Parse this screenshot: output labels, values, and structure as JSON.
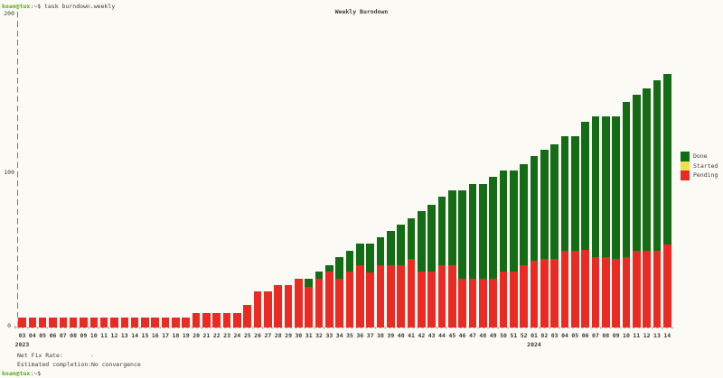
{
  "colors": {
    "background": "#fbfaf4",
    "text": "#3f3b33",
    "prompt_green": "#5aa70c",
    "axis": "#7b766c",
    "done": "#146c14",
    "started": "#f0df4e",
    "pending": "#ea2b23"
  },
  "terminal": {
    "prompt_user": "koan@tux",
    "prompt_suffix": ":~$ ",
    "command": "task burndown.weekly",
    "bottom_prompt_user": "koan@tux",
    "bottom_prompt_suffix": ":~$"
  },
  "status": {
    "net_fix_rate_label": "Net Fix Rate:",
    "net_fix_rate_value": "-",
    "estimated_label": "Estimated completion:",
    "estimated_value": "No convergence"
  },
  "chart_data": {
    "type": "bar",
    "stacked": true,
    "title": "Weekly Burndown",
    "xlabel": "",
    "ylabel": "",
    "ylim": [
      0,
      200
    ],
    "grid": false,
    "legend_position": "right",
    "y_ticks": [
      {
        "label": "200",
        "value": 200
      },
      {
        "label": "100",
        "value": 100
      },
      {
        "label": "0",
        "value": 0
      }
    ],
    "origin_marker": "+",
    "categories": [
      "03",
      "04",
      "05",
      "06",
      "07",
      "08",
      "09",
      "10",
      "11",
      "12",
      "13",
      "14",
      "15",
      "16",
      "17",
      "18",
      "19",
      "20",
      "21",
      "22",
      "23",
      "24",
      "25",
      "26",
      "27",
      "28",
      "29",
      "30",
      "31",
      "32",
      "33",
      "34",
      "35",
      "36",
      "37",
      "38",
      "39",
      "40",
      "41",
      "42",
      "43",
      "44",
      "45",
      "46",
      "47",
      "48",
      "49",
      "50",
      "51",
      "52",
      "01",
      "02",
      "03",
      "04",
      "05",
      "06",
      "07",
      "08",
      "09",
      "10",
      "11",
      "12",
      "13",
      "14"
    ],
    "year_labels": [
      {
        "text": "2023",
        "index": 0
      },
      {
        "text": "2024",
        "index": 50
      }
    ],
    "legend": [
      {
        "label": "Done",
        "color": "#146c14"
      },
      {
        "label": "Started",
        "color": "#f0df4e"
      },
      {
        "label": "Pending",
        "color": "#ea2b23"
      }
    ],
    "series": [
      {
        "name": "Pending",
        "color": "#ea2b23",
        "values": [
          6,
          6,
          6,
          6,
          6,
          6,
          6,
          6,
          6,
          6,
          6,
          6,
          6,
          6,
          6,
          6,
          6,
          9,
          9,
          9,
          9,
          9,
          14,
          23,
          23,
          27,
          27,
          31,
          26,
          31,
          36,
          31,
          36,
          40,
          35,
          40,
          40,
          40,
          44,
          36,
          36,
          40,
          40,
          31,
          31,
          31,
          31,
          36,
          36,
          40,
          43,
          44,
          44,
          49,
          49,
          50,
          45,
          45,
          44,
          45,
          49,
          49,
          49,
          53
        ]
      },
      {
        "name": "Started",
        "color": "#f0df4e",
        "values": [
          0,
          0,
          0,
          0,
          0,
          0,
          0,
          0,
          0,
          0,
          0,
          0,
          0,
          0,
          0,
          0,
          0,
          0,
          0,
          0,
          0,
          0,
          0,
          0,
          0,
          0,
          0,
          0,
          0,
          0,
          0,
          0,
          0,
          0,
          0,
          0,
          0,
          0,
          0,
          0,
          0,
          0,
          0,
          0,
          0,
          0,
          0,
          0,
          0,
          0,
          0,
          0,
          0,
          0,
          0,
          0,
          0,
          0,
          0,
          0,
          0,
          0,
          0,
          0
        ]
      },
      {
        "name": "Done",
        "color": "#146c14",
        "values": [
          0,
          0,
          0,
          0,
          0,
          0,
          0,
          0,
          0,
          0,
          0,
          0,
          0,
          0,
          0,
          0,
          0,
          0,
          0,
          0,
          0,
          0,
          0,
          0,
          0,
          0,
          0,
          0,
          5,
          5,
          4,
          14,
          13,
          14,
          19,
          18,
          22,
          26,
          26,
          39,
          43,
          44,
          48,
          57,
          61,
          61,
          66,
          65,
          65,
          65,
          67,
          70,
          74,
          74,
          74,
          82,
          91,
          91,
          92,
          100,
          101,
          105,
          110,
          110
        ]
      }
    ]
  }
}
